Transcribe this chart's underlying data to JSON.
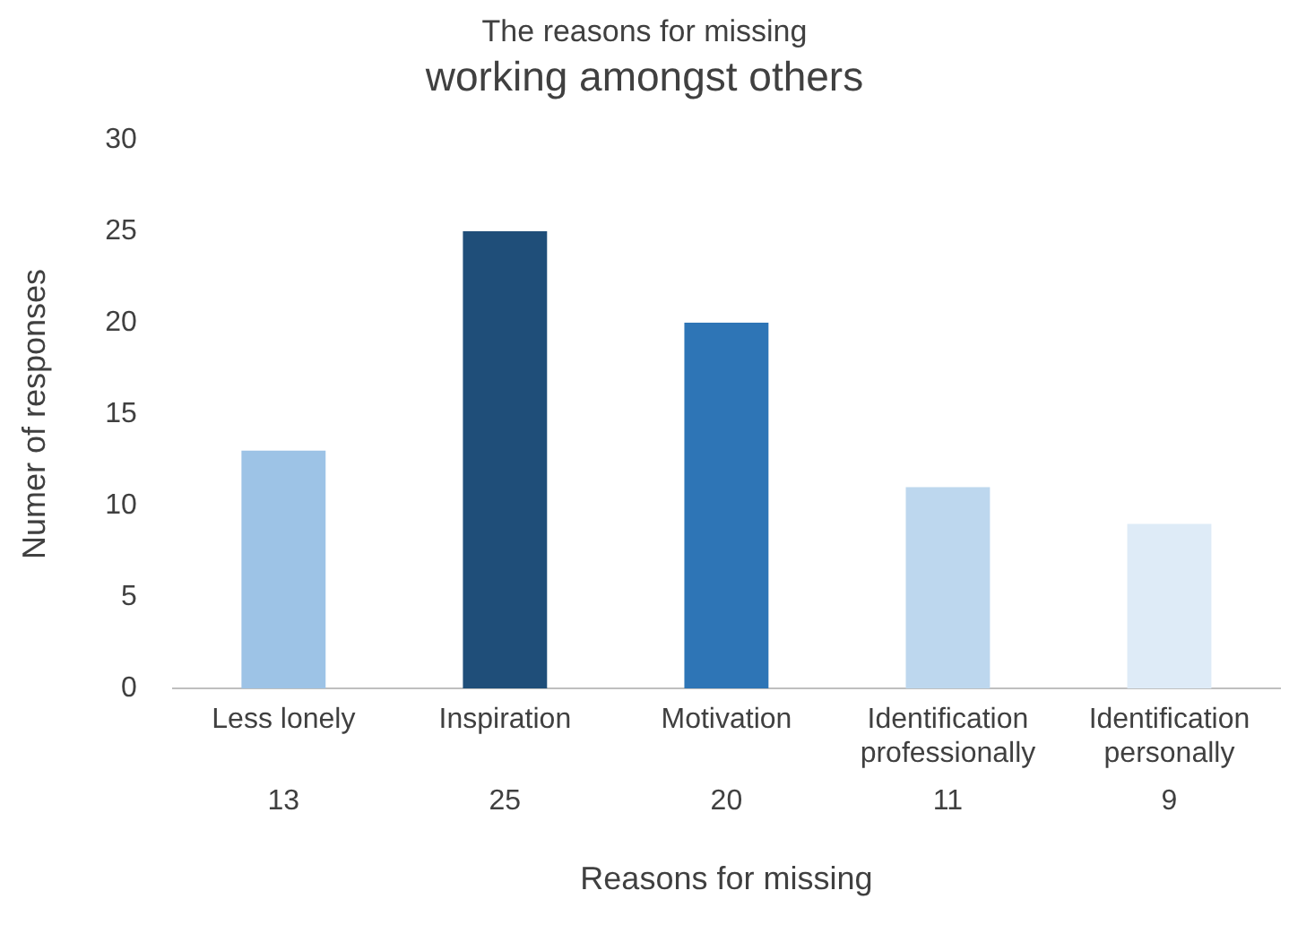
{
  "chart_data": {
    "type": "bar",
    "title": "The reasons for missing",
    "subtitle": "working amongst others",
    "xlabel": "Reasons for missing",
    "ylabel": "Numer of responses",
    "categories": [
      "Less lonely",
      "Inspiration",
      "Motivation",
      "Identification professionally",
      "Identification personally"
    ],
    "values": [
      13,
      25,
      20,
      11,
      9
    ],
    "colors": [
      "#9dc3e6",
      "#1f4e79",
      "#2e75b6",
      "#bdd7ee",
      "#deebf7"
    ],
    "ylim": [
      0,
      30
    ],
    "yticks": [
      0,
      5,
      10,
      15,
      20,
      25,
      30
    ],
    "grid": false,
    "legend": false,
    "data_labels": true
  }
}
